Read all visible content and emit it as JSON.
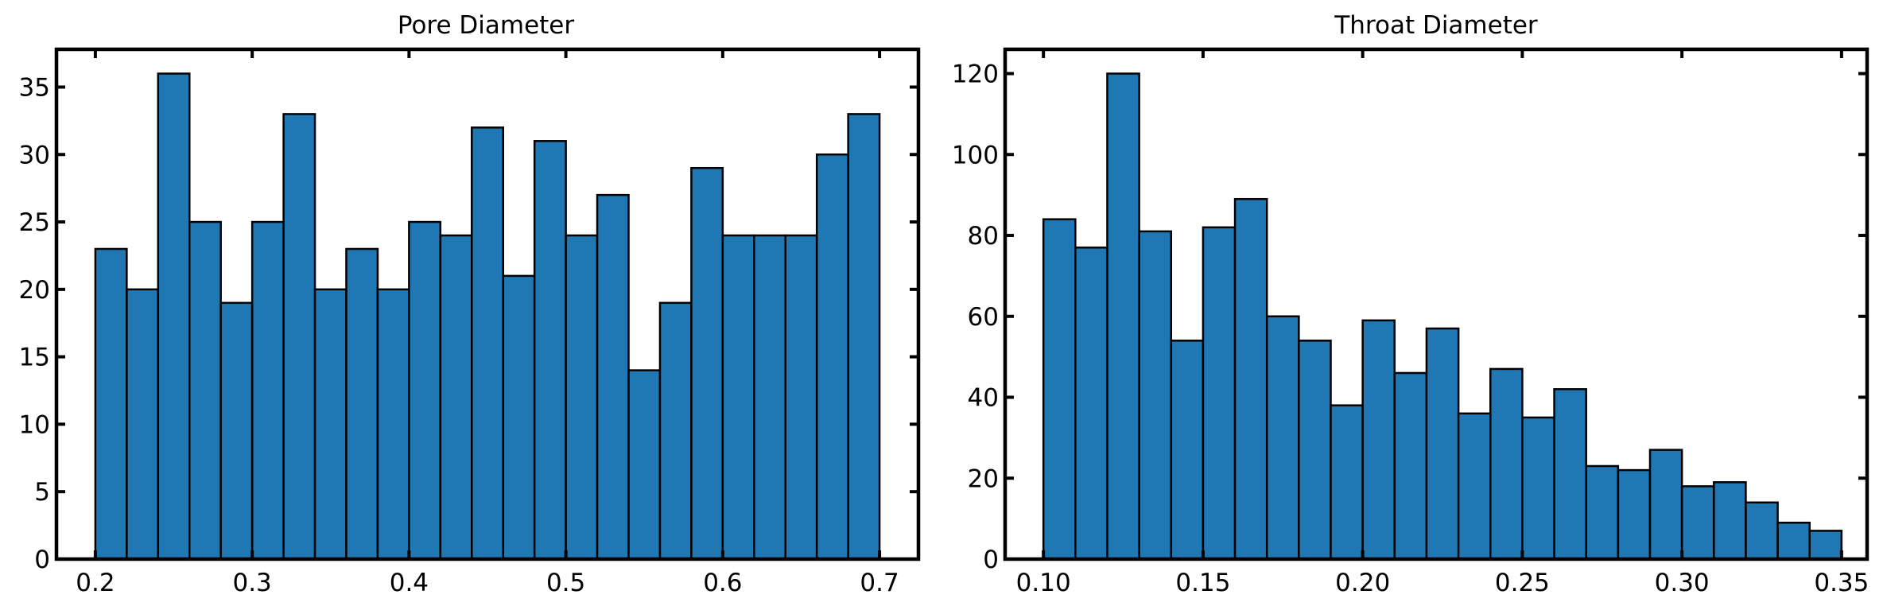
{
  "colors": {
    "bar_fill": "#1f77b4",
    "bar_edge": "#000000",
    "axis": "#000000",
    "background": "#ffffff"
  },
  "chart_data": [
    {
      "type": "bar",
      "title": "Pore Diameter",
      "xlabel": "",
      "ylabel": "",
      "grid": false,
      "xlim": [
        0.1752,
        0.7248
      ],
      "ylim": [
        0,
        37.8
      ],
      "xticks": [
        0.2,
        0.3,
        0.4,
        0.5,
        0.6,
        0.7
      ],
      "xtick_labels": [
        "0.2",
        "0.3",
        "0.4",
        "0.5",
        "0.6",
        "0.7"
      ],
      "yticks": [
        0,
        5,
        10,
        15,
        20,
        25,
        30,
        35
      ],
      "ytick_labels": [
        "0",
        "5",
        "10",
        "15",
        "20",
        "25",
        "30",
        "35"
      ],
      "bin_edges": [
        0.2,
        0.22,
        0.24,
        0.26,
        0.28,
        0.3,
        0.32,
        0.34,
        0.36,
        0.38,
        0.4,
        0.42,
        0.44,
        0.46,
        0.48,
        0.5,
        0.52,
        0.54,
        0.56,
        0.58,
        0.6,
        0.62,
        0.64,
        0.66,
        0.68,
        0.7
      ],
      "values": [
        23,
        20,
        36,
        25,
        19,
        25,
        33,
        20,
        23,
        20,
        25,
        24,
        32,
        21,
        31,
        24,
        27,
        14,
        19,
        29,
        24,
        24,
        24,
        30,
        33
      ]
    },
    {
      "type": "bar",
      "title": "Throat Diameter",
      "xlabel": "",
      "ylabel": "",
      "grid": false,
      "xlim": [
        0.088,
        0.358
      ],
      "ylim": [
        0,
        126
      ],
      "xticks": [
        0.1,
        0.15,
        0.2,
        0.25,
        0.3,
        0.35
      ],
      "xtick_labels": [
        "0.10",
        "0.15",
        "0.20",
        "0.25",
        "0.30",
        "0.35"
      ],
      "yticks": [
        0,
        20,
        40,
        60,
        80,
        100,
        120
      ],
      "ytick_labels": [
        "0",
        "20",
        "40",
        "60",
        "80",
        "100",
        "120"
      ],
      "bin_edges": [
        0.1,
        0.11,
        0.12,
        0.13,
        0.14,
        0.15,
        0.16,
        0.17,
        0.18,
        0.19,
        0.2,
        0.21,
        0.22,
        0.23,
        0.24,
        0.25,
        0.26,
        0.27,
        0.28,
        0.29,
        0.3,
        0.31,
        0.32,
        0.33,
        0.34,
        0.35
      ],
      "values": [
        84,
        77,
        120,
        81,
        54,
        82,
        89,
        60,
        54,
        38,
        59,
        46,
        57,
        36,
        47,
        35,
        42,
        23,
        22,
        27,
        18,
        19,
        14,
        9,
        7
      ]
    }
  ]
}
